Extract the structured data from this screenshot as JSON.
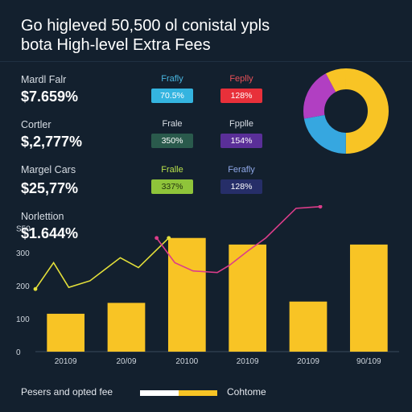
{
  "title": {
    "line1": "Go higleved 50,500 ol conistal ypls",
    "line2": "bota High-level Extra Fees"
  },
  "metrics": [
    {
      "label": "Mardl Falr",
      "value": "$7.659%"
    },
    {
      "label": "Cortler",
      "value": "$,2,777%"
    },
    {
      "label": "Margel Cars",
      "value": "$25,77%"
    },
    {
      "label": "Norlettion",
      "value": "$1.644%"
    }
  ],
  "pill_rows": [
    {
      "left": {
        "head": "Frafly",
        "value": "70.5%",
        "color": "#34b4e0",
        "head_color": "#49b6e0"
      },
      "right": {
        "head": "Feplly",
        "value": "128%",
        "color": "#e8303a",
        "head_color": "#e85058"
      }
    },
    {
      "left": {
        "head": "Frale",
        "value": "350%",
        "color": "#2a5a4c",
        "head_color": "#d7dde4"
      },
      "right": {
        "head": "Fpplle",
        "value": "154%",
        "color": "#5a2f98",
        "head_color": "#d7dde4"
      }
    },
    {
      "left": {
        "head": "Fralle",
        "value": "337%",
        "color": "#8fc43a",
        "head_color": "#b7e04a"
      },
      "right": {
        "head": "Ferafly",
        "value": "128%",
        "color": "#262e68",
        "head_color": "#8fa8e8"
      }
    }
  ],
  "donut": {
    "segments": [
      {
        "value": 50,
        "color": "#f8c425"
      },
      {
        "value": 22,
        "color": "#36a7e0"
      },
      {
        "value": 20,
        "color": "#b13fc2"
      },
      {
        "value": 8,
        "color": "#f8c425"
      }
    ]
  },
  "chart_data": {
    "type": "bar",
    "categories": [
      "20109",
      "20/09",
      "20100",
      "20109",
      "20109",
      "90/109"
    ],
    "values": [
      115,
      148,
      345,
      325,
      152,
      325
    ],
    "ylim": [
      0,
      420
    ],
    "ytick_labels": [
      "0",
      "100",
      "200",
      "300",
      "S50"
    ],
    "yticks": [
      0,
      100,
      200,
      300,
      375
    ],
    "bar_color": "#f8c425",
    "overlay_lines": [
      {
        "color": "#e4e03a",
        "points": [
          [
            0,
            190
          ],
          [
            0.3,
            270
          ],
          [
            0.55,
            195
          ],
          [
            0.9,
            215
          ],
          [
            1.4,
            285
          ],
          [
            1.7,
            255
          ],
          [
            2.2,
            345
          ]
        ]
      },
      {
        "color": "#dc3d8a",
        "points": [
          [
            2.0,
            345
          ],
          [
            2.3,
            270
          ],
          [
            2.6,
            245
          ],
          [
            3.0,
            240
          ],
          [
            3.2,
            262
          ],
          [
            3.5,
            305
          ],
          [
            3.8,
            345
          ],
          [
            4.3,
            435
          ],
          [
            4.7,
            440
          ]
        ]
      }
    ]
  },
  "legend": {
    "left_text": "Pesers and opted fee",
    "right_text": "Cohtome",
    "colors": [
      "#ffffff",
      "#f8c425"
    ]
  }
}
